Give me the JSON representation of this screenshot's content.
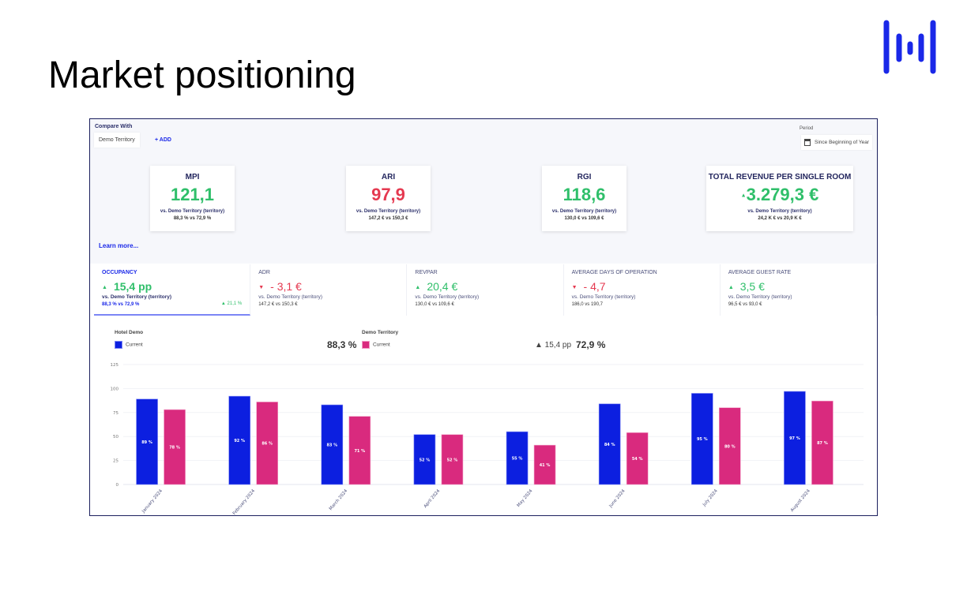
{
  "slide_title": "Market positioning",
  "logo": "brand-logo",
  "compare": {
    "label": "Compare With",
    "selected": "Demo Territory",
    "add_label": "+ ADD"
  },
  "period": {
    "label": "Period",
    "value": "Since Beginning of Year",
    "icon": "calendar-icon"
  },
  "learn_more": "Learn more...",
  "cards": [
    {
      "title": "MPI",
      "value": "121,1",
      "color": "#2fbf6a",
      "sub": "vs. Demo Territory (territory)",
      "compare": "88,3 % vs 72,9 %"
    },
    {
      "title": "ARI",
      "value": "97,9",
      "color": "#e53950",
      "sub": "vs. Demo Territory (territory)",
      "compare": "147,2 € vs 150,3 €"
    },
    {
      "title": "RGI",
      "value": "118,6",
      "color": "#2fbf6a",
      "sub": "vs. Demo Territory (territory)",
      "compare": "130,0 € vs 109,6 €"
    },
    {
      "title": "TOTAL REVENUE PER SINGLE ROOM",
      "value": "3.279,3 €",
      "color": "#2fbf6a",
      "sub": "vs. Demo Territory (territory)",
      "compare": "24,2 K € vs 20,9 K €"
    }
  ],
  "tabs": [
    {
      "name": "OCCUPANCY",
      "trend": "up",
      "value": "15,4 pp",
      "sub": "vs. Demo Territory (territory)",
      "compare": "88,3 % vs 72,9 %",
      "pct": "21,1 %",
      "active": true
    },
    {
      "name": "ADR",
      "trend": "down",
      "value": "- 3,1 €",
      "sub": "vs. Demo Territory (territory)",
      "compare": "147,2 € vs 150,3 €"
    },
    {
      "name": "REVPAR",
      "trend": "up",
      "value": "20,4 €",
      "sub": "vs. Demo Territory (territory)",
      "compare": "130,0 € vs 109,6 €"
    },
    {
      "name": "AVERAGE DAYS OF OPERATION",
      "trend": "down",
      "value": "- 4,7",
      "sub": "vs. Demo Territory (territory)",
      "compare": "186,0 vs 190,7"
    },
    {
      "name": "AVERAGE GUEST RATE",
      "trend": "up",
      "value": "3,5 €",
      "sub": "vs. Demo Territory (territory)",
      "compare": "96,5 € vs 93,0 €"
    }
  ],
  "legend": {
    "hotel": "Hotel Demo",
    "hotel_series": "Current",
    "hotel_value": "88,3 %",
    "territory": "Demo Territory",
    "territory_series": "Current",
    "delta": "▲ 15,4 pp",
    "territory_value": "72,9 %"
  },
  "colors": {
    "hotel": "#0c1fe0",
    "territory": "#d92a7e",
    "up": "#2fbf6a",
    "down": "#e53950"
  },
  "chart_data": {
    "type": "bar",
    "categories": [
      "January 2024",
      "February 2024",
      "March 2024",
      "April 2024",
      "May 2024",
      "June 2024",
      "July 2024",
      "August 2024"
    ],
    "series": [
      {
        "name": "Hotel Demo",
        "values": [
          89,
          92,
          83,
          52,
          55,
          84,
          95,
          97
        ]
      },
      {
        "name": "Demo Territory",
        "values": [
          78,
          86,
          71,
          52,
          41,
          54,
          80,
          87
        ]
      }
    ],
    "data_label_suffix": " %",
    "ylim": [
      0,
      125
    ],
    "yticks": [
      0,
      25,
      50,
      75,
      100,
      125
    ],
    "grid": true
  }
}
